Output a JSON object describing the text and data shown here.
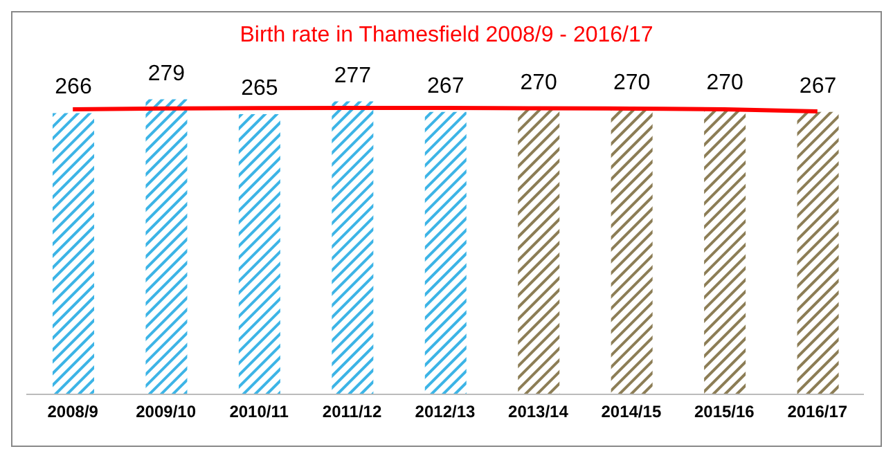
{
  "chart_data": {
    "type": "bar",
    "title": "Birth rate in Thamesfield 2008/9 - 2016/17",
    "categories": [
      "2008/9",
      "2009/10",
      "2010/11",
      "2011/12",
      "2012/13",
      "2013/14",
      "2014/15",
      "2015/16",
      "2016/17"
    ],
    "series": [
      {
        "values": [
          266,
          279,
          265,
          277,
          267,
          270,
          270,
          270,
          267
        ],
        "value_labels": [
          "266",
          "279",
          "265",
          "277",
          "267",
          "270",
          "270",
          "270",
          "267"
        ],
        "colors": [
          "#3cb4e6",
          "#3cb4e6",
          "#3cb4e6",
          "#3cb4e6",
          "#3cb4e6",
          "#8c7d55",
          "#8c7d55",
          "#8c7d55",
          "#8c7d55"
        ]
      },
      {
        "type": "line",
        "color": "#ff0000",
        "values": [
          269.5,
          270.3,
          270.7,
          270.9,
          270.8,
          270.5,
          270.2,
          269.5,
          267.5
        ]
      }
    ],
    "tick_labels": "x",
    "grid": false,
    "legend": false
  }
}
